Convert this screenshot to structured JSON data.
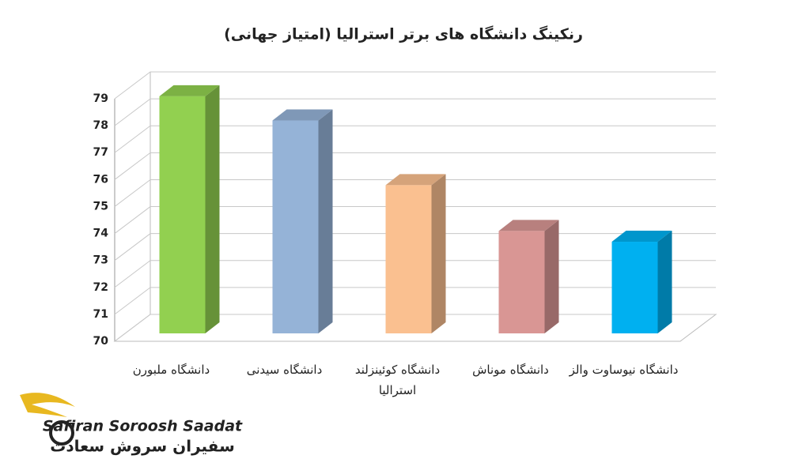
{
  "chart_data": {
    "type": "bar3d",
    "title": "رنکینگ دانشگاه های برتر استرالیا (امتیاز جهانی)",
    "categories": [
      "دانشگاه ملبورن",
      "دانشگاه سیدنی",
      "دانشگاه کوئینزلند استرالیا",
      "دانشگاه موناش",
      "دانشگاه نیوساوت والز"
    ],
    "values": [
      78.8,
      77.9,
      75.5,
      73.8,
      73.4
    ],
    "colors": [
      "#92d050",
      "#95b3d7",
      "#fac090",
      "#d99694",
      "#00b0f0"
    ],
    "ylim": [
      70,
      79
    ],
    "yticks": [
      70,
      71,
      72,
      73,
      74,
      75,
      76,
      77,
      78,
      79
    ],
    "grid": true
  },
  "logo": {
    "latin": "Safiran Soroosh Saadat",
    "persian": "سفیران سروش سعادت"
  }
}
